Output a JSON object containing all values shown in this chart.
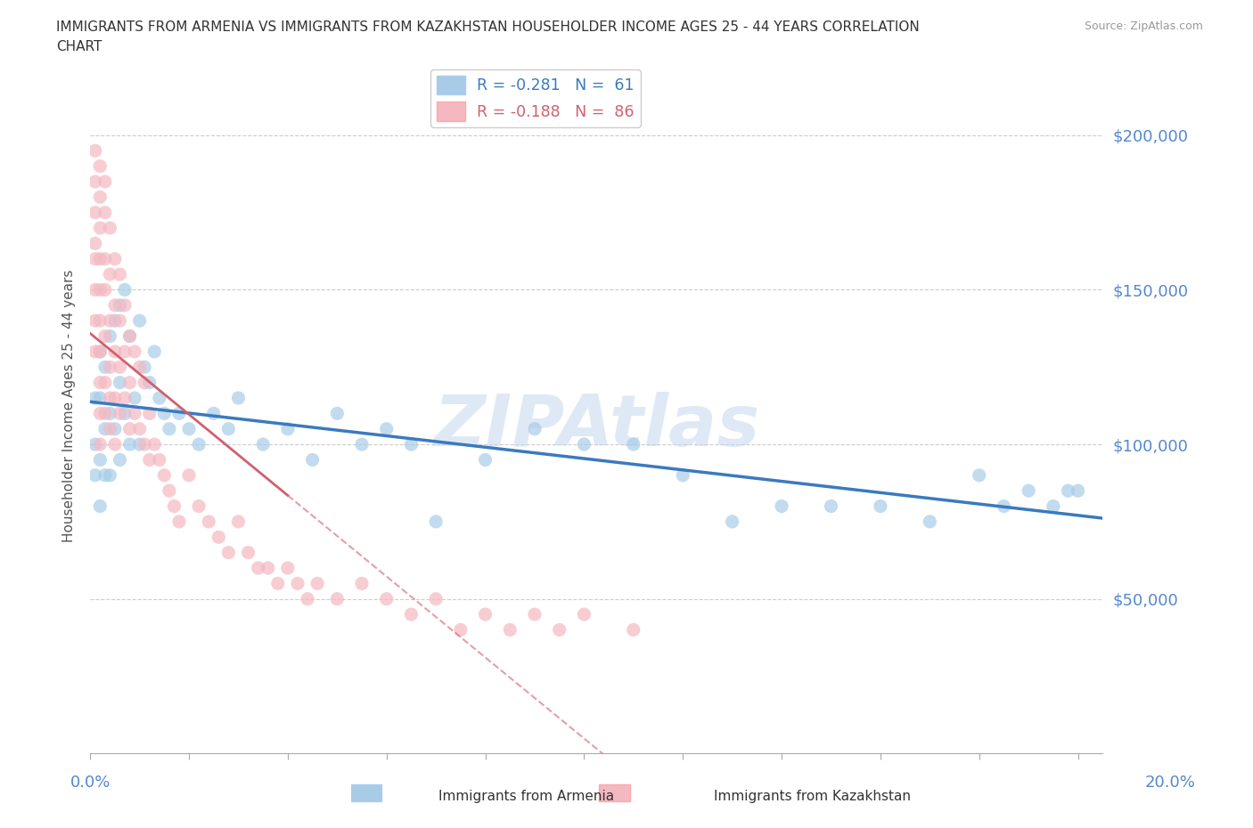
{
  "title_line1": "IMMIGRANTS FROM ARMENIA VS IMMIGRANTS FROM KAZAKHSTAN HOUSEHOLDER INCOME AGES 25 - 44 YEARS CORRELATION",
  "title_line2": "CHART",
  "source": "Source: ZipAtlas.com",
  "ylabel": "Householder Income Ages 25 - 44 years",
  "legend1_label": "R = -0.281   N =  61",
  "legend2_label": "R = -0.188   N =  86",
  "color_armenia": "#a8cce8",
  "color_kazakhstan": "#f4b8c1",
  "color_line_armenia": "#3a7abf",
  "color_line_kazakhstan": "#d06070",
  "watermark": "ZIPAtlas",
  "xlim": [
    0.0,
    0.205
  ],
  "ylim": [
    0,
    225000
  ],
  "yticks": [
    50000,
    100000,
    150000,
    200000
  ],
  "ytick_labels": [
    "$50,000",
    "$100,000",
    "$150,000",
    "$200,000"
  ],
  "armenia_x": [
    0.001,
    0.001,
    0.001,
    0.002,
    0.002,
    0.002,
    0.002,
    0.003,
    0.003,
    0.003,
    0.004,
    0.004,
    0.004,
    0.005,
    0.005,
    0.006,
    0.006,
    0.006,
    0.007,
    0.007,
    0.008,
    0.008,
    0.009,
    0.01,
    0.01,
    0.011,
    0.012,
    0.013,
    0.014,
    0.015,
    0.016,
    0.018,
    0.02,
    0.022,
    0.025,
    0.028,
    0.03,
    0.035,
    0.04,
    0.045,
    0.05,
    0.055,
    0.06,
    0.065,
    0.07,
    0.08,
    0.09,
    0.1,
    0.11,
    0.12,
    0.13,
    0.14,
    0.15,
    0.16,
    0.17,
    0.18,
    0.185,
    0.19,
    0.195,
    0.198,
    0.2
  ],
  "armenia_y": [
    115000,
    100000,
    90000,
    130000,
    115000,
    95000,
    80000,
    125000,
    105000,
    90000,
    135000,
    110000,
    90000,
    140000,
    105000,
    145000,
    120000,
    95000,
    150000,
    110000,
    135000,
    100000,
    115000,
    140000,
    100000,
    125000,
    120000,
    130000,
    115000,
    110000,
    105000,
    110000,
    105000,
    100000,
    110000,
    105000,
    115000,
    100000,
    105000,
    95000,
    110000,
    100000,
    105000,
    100000,
    75000,
    95000,
    105000,
    100000,
    100000,
    90000,
    75000,
    80000,
    80000,
    80000,
    75000,
    90000,
    80000,
    85000,
    80000,
    85000,
    85000
  ],
  "kazakhstan_x": [
    0.001,
    0.001,
    0.001,
    0.001,
    0.001,
    0.001,
    0.001,
    0.001,
    0.002,
    0.002,
    0.002,
    0.002,
    0.002,
    0.002,
    0.002,
    0.002,
    0.002,
    0.002,
    0.003,
    0.003,
    0.003,
    0.003,
    0.003,
    0.003,
    0.003,
    0.004,
    0.004,
    0.004,
    0.004,
    0.004,
    0.004,
    0.005,
    0.005,
    0.005,
    0.005,
    0.005,
    0.006,
    0.006,
    0.006,
    0.006,
    0.007,
    0.007,
    0.007,
    0.008,
    0.008,
    0.008,
    0.009,
    0.009,
    0.01,
    0.01,
    0.011,
    0.011,
    0.012,
    0.012,
    0.013,
    0.014,
    0.015,
    0.016,
    0.017,
    0.018,
    0.02,
    0.022,
    0.024,
    0.026,
    0.028,
    0.03,
    0.032,
    0.034,
    0.036,
    0.038,
    0.04,
    0.042,
    0.044,
    0.046,
    0.05,
    0.055,
    0.06,
    0.065,
    0.07,
    0.075,
    0.08,
    0.085,
    0.09,
    0.095,
    0.1,
    0.11
  ],
  "kazakhstan_y": [
    195000,
    185000,
    175000,
    165000,
    160000,
    150000,
    140000,
    130000,
    190000,
    180000,
    170000,
    160000,
    150000,
    140000,
    130000,
    120000,
    110000,
    100000,
    185000,
    175000,
    160000,
    150000,
    135000,
    120000,
    110000,
    170000,
    155000,
    140000,
    125000,
    115000,
    105000,
    160000,
    145000,
    130000,
    115000,
    100000,
    155000,
    140000,
    125000,
    110000,
    145000,
    130000,
    115000,
    135000,
    120000,
    105000,
    130000,
    110000,
    125000,
    105000,
    120000,
    100000,
    110000,
    95000,
    100000,
    95000,
    90000,
    85000,
    80000,
    75000,
    90000,
    80000,
    75000,
    70000,
    65000,
    75000,
    65000,
    60000,
    60000,
    55000,
    60000,
    55000,
    50000,
    55000,
    50000,
    55000,
    50000,
    45000,
    50000,
    40000,
    45000,
    40000,
    45000,
    40000,
    45000,
    40000
  ]
}
